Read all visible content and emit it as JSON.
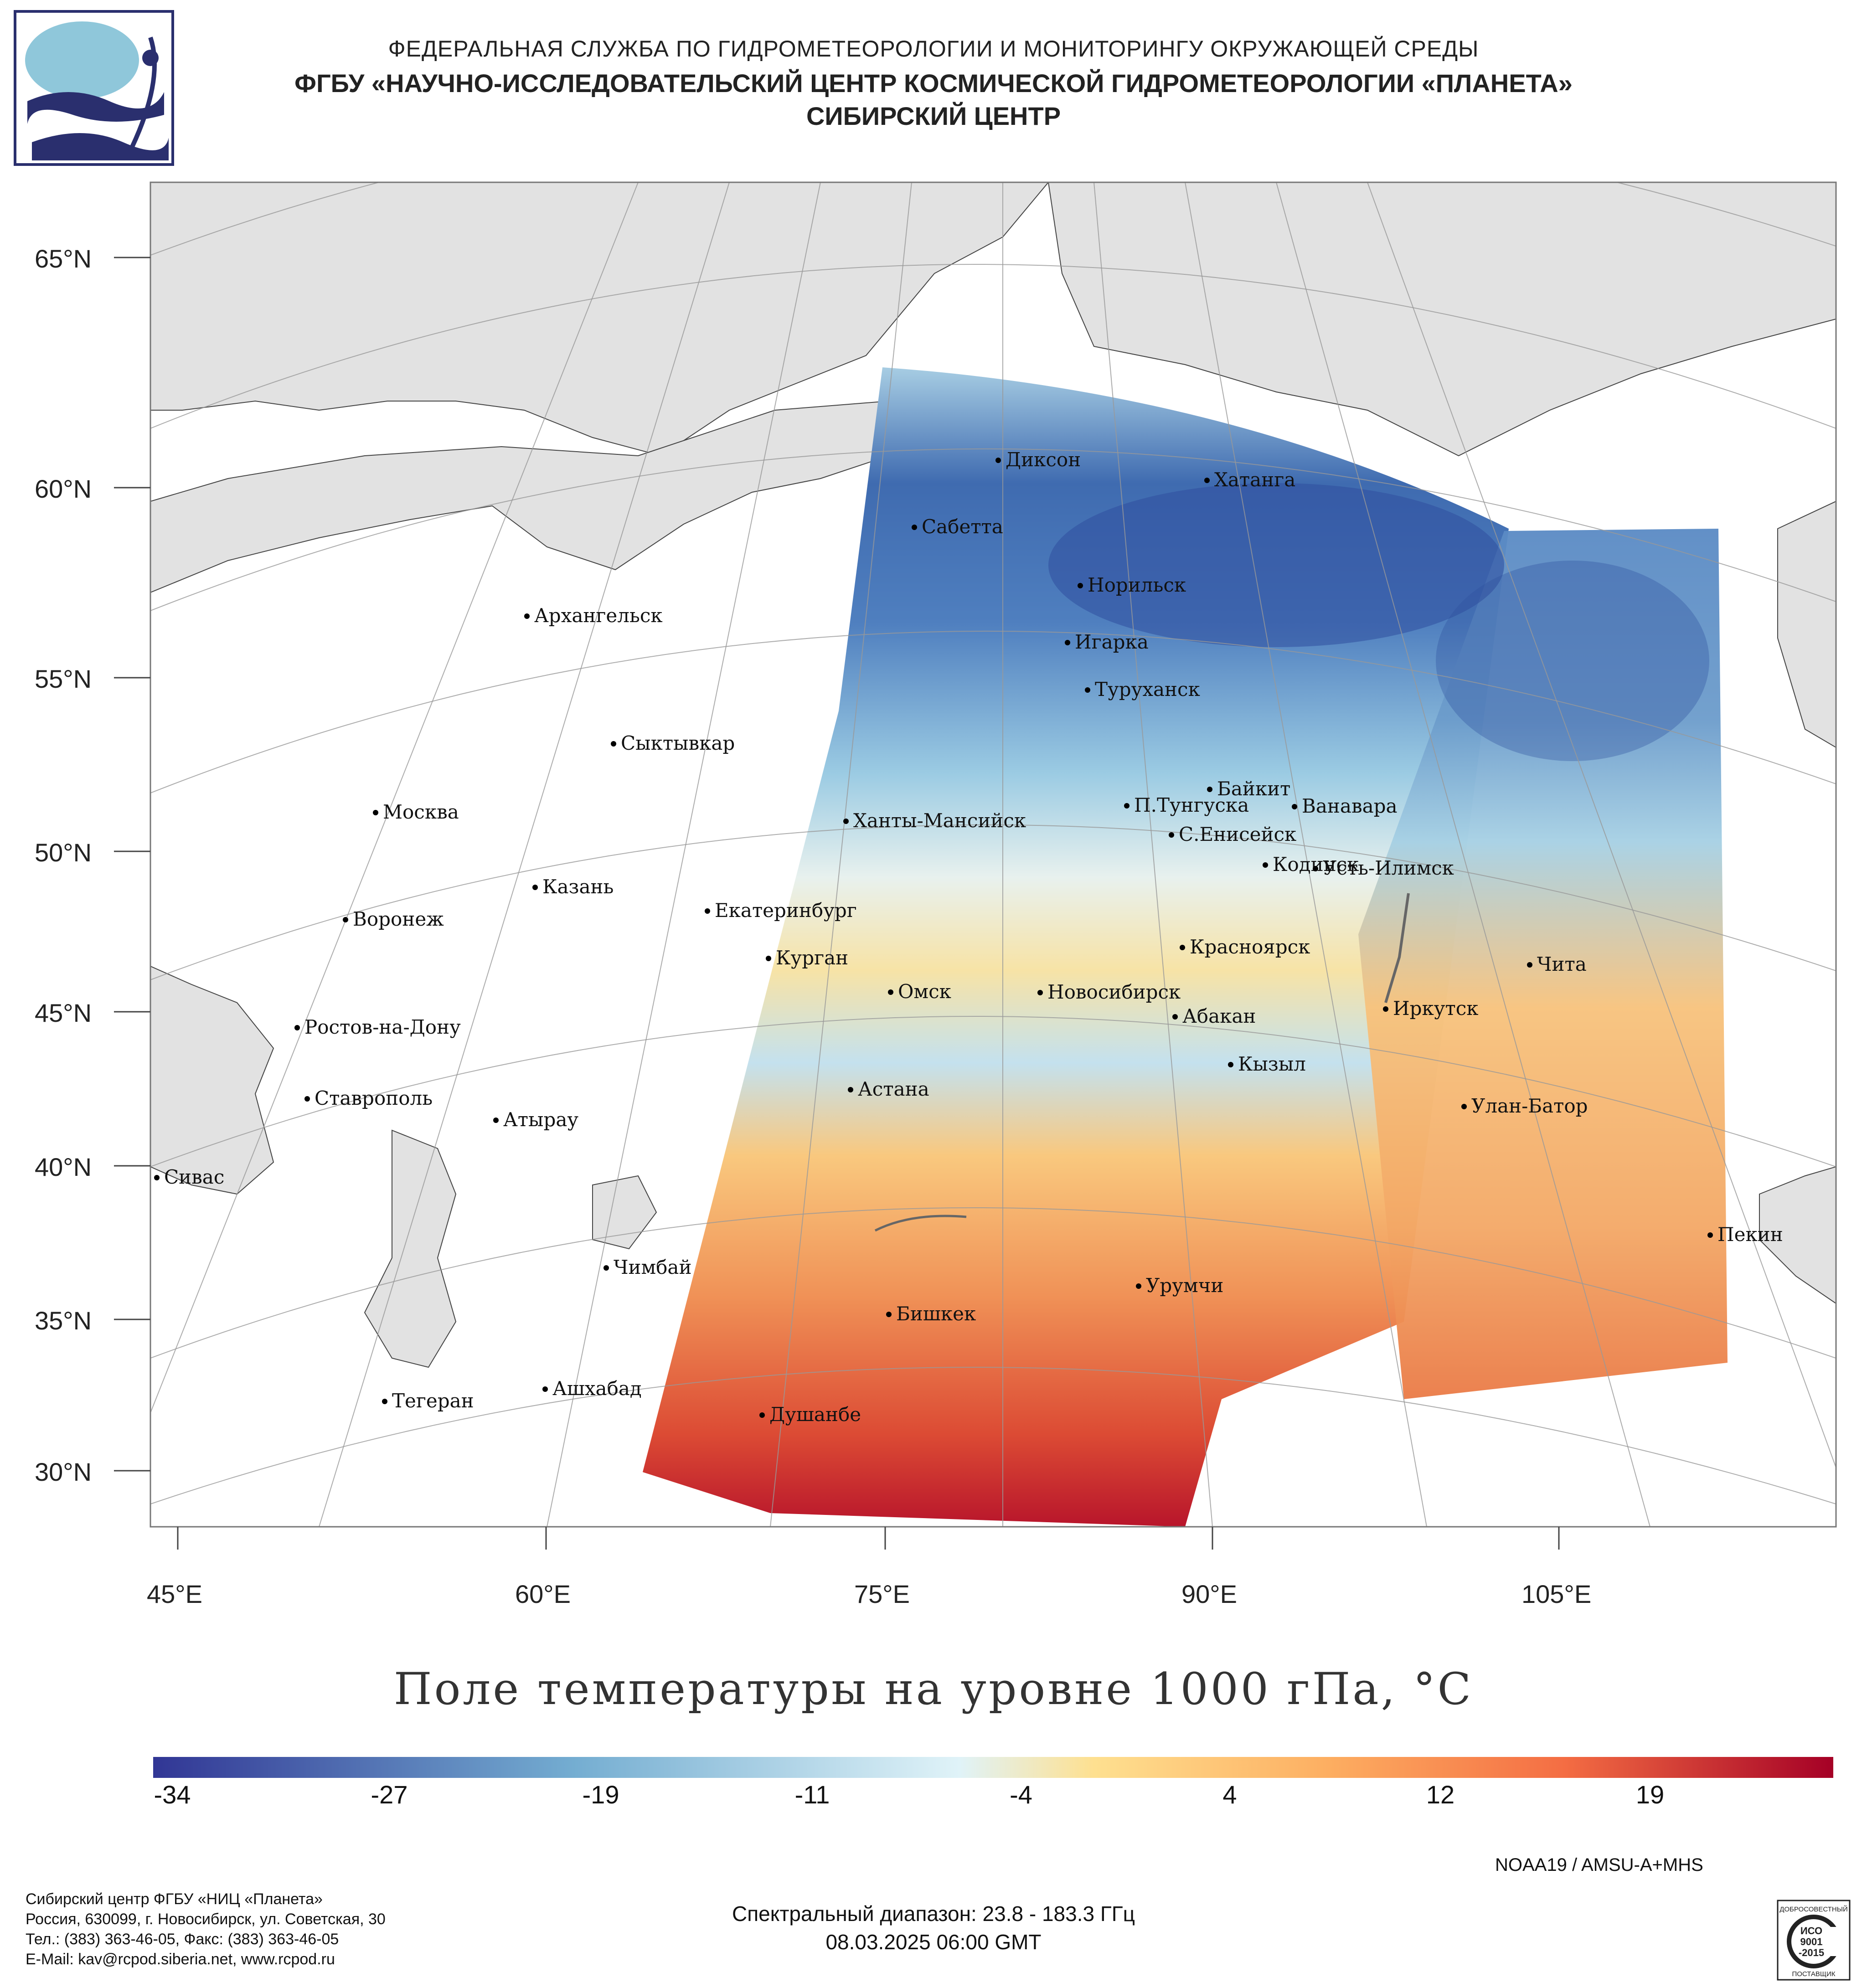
{
  "header": {
    "line1": "ФЕДЕРАЛЬНАЯ СЛУЖБА ПО ГИДРОМЕТЕОРОЛОГИИ И МОНИТОРИНГУ ОКРУЖАЮЩЕЙ СРЕДЫ",
    "line2": "ФГБУ «НАУЧНО-ИССЛЕДОВАТЕЛЬСКИЙ ЦЕНТР КОСМИЧЕСКОЙ ГИДРОМЕТЕОРОЛОГИИ «ПЛАНЕТА»",
    "line3": "СИБИРСКИЙ ЦЕНТР"
  },
  "axes": {
    "lat_labels": [
      "65°N",
      "60°N",
      "55°N",
      "50°N",
      "45°N",
      "40°N",
      "35°N",
      "30°N"
    ],
    "lon_labels": [
      "45°E",
      "60°E",
      "75°E",
      "90°E",
      "105°E"
    ]
  },
  "cities": [
    {
      "name": "Диксон"
    },
    {
      "name": "Хатанга"
    },
    {
      "name": "Сабетта"
    },
    {
      "name": "Норильск"
    },
    {
      "name": "Архангельск"
    },
    {
      "name": "Игарка"
    },
    {
      "name": "Туруханск"
    },
    {
      "name": "Сыктывкар"
    },
    {
      "name": "Байкит"
    },
    {
      "name": "П.Тунгуска"
    },
    {
      "name": "Ванавара"
    },
    {
      "name": "Москва"
    },
    {
      "name": "Ханты-Мансийск"
    },
    {
      "name": "С.Енисейск"
    },
    {
      "name": "Кодинск"
    },
    {
      "name": "Усть-Илимск"
    },
    {
      "name": "Казань"
    },
    {
      "name": "Екатеринбург"
    },
    {
      "name": "Воронеж"
    },
    {
      "name": "Красноярск"
    },
    {
      "name": "Курган"
    },
    {
      "name": "Чита"
    },
    {
      "name": "Омск"
    },
    {
      "name": "Новосибирск"
    },
    {
      "name": "Ростов-на-Дону"
    },
    {
      "name": "Иркутск"
    },
    {
      "name": "Абакан"
    },
    {
      "name": "Кызыл"
    },
    {
      "name": "Ставрополь"
    },
    {
      "name": "Астана"
    },
    {
      "name": "Улан-Батор"
    },
    {
      "name": "Атырау"
    },
    {
      "name": "Сивас"
    },
    {
      "name": "Пекин"
    },
    {
      "name": "Чимбай"
    },
    {
      "name": "Урумчи"
    },
    {
      "name": "Бишкек"
    },
    {
      "name": "Ашхабад"
    },
    {
      "name": "Тегеран"
    },
    {
      "name": "Душанбе"
    }
  ],
  "title": "Поле температуры на уровне 1000 гПа, °C",
  "legend": {
    "ticks": [
      "-34",
      "-27",
      "-19",
      "-11",
      "-4",
      "4",
      "12",
      "19"
    ],
    "colors": {
      "cold": "#313695",
      "cool": "#74add1",
      "neutral": "#e0f3f8",
      "warm": "#fdae61",
      "hot": "#a50026"
    }
  },
  "footer": {
    "org1": "Сибирский центр ФГБУ «НИЦ «Планета»",
    "org2": "Россия, 630099, г. Новосибирск, ул. Советская, 30",
    "org3": "Тел.: (383) 363-46-05, Факс: (383) 363-46-05",
    "org4": "E-Mail: kav@rcpod.siberia.net, www.rcpod.ru",
    "satellite": "NOAA19 / AMSU-A+MHS",
    "spectral": "Спектральный диапазон: 23.8 - 183.3 ГГц",
    "datetime": "08.03.2025 06:00 GMT",
    "iso_top": "ДОБРОСОВЕСТНЫЙ",
    "iso_mid1": "ИСО",
    "iso_mid2": "9001",
    "iso_mid3": "-2015",
    "iso_bottom": "ПОСТАВЩИК"
  }
}
